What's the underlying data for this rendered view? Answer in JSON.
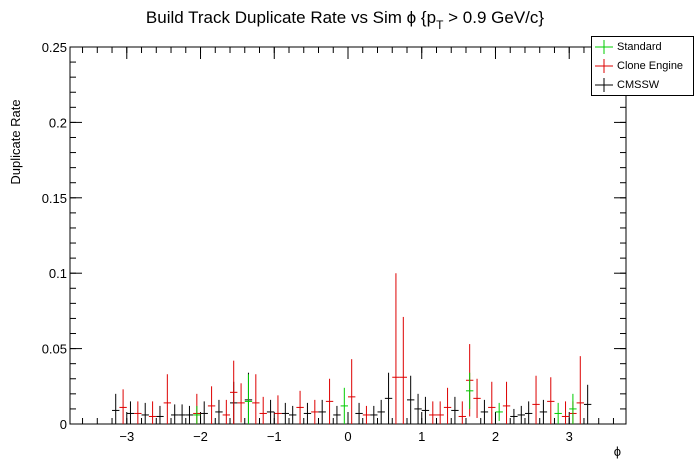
{
  "chart_data": {
    "type": "scatter",
    "title": "Build Track Duplicate Rate vs Sim ϕ {p",
    "title_sub": "T",
    "title_rest": " > 0.9 GeV/c}",
    "xlabel": "ϕ",
    "ylabel": "Duplicate Rate",
    "xlim": [
      -3.77,
      3.77
    ],
    "ylim": [
      0,
      0.25
    ],
    "x_ticks": [
      {
        "v": -3,
        "label": "−3"
      },
      {
        "v": -2,
        "label": "−2"
      },
      {
        "v": -1,
        "label": "−1"
      },
      {
        "v": 0,
        "label": "0"
      },
      {
        "v": 1,
        "label": "1"
      },
      {
        "v": 2,
        "label": "2"
      },
      {
        "v": 3,
        "label": "3"
      }
    ],
    "y_ticks": [
      {
        "v": 0,
        "label": "0"
      },
      {
        "v": 0.05,
        "label": "0.05"
      },
      {
        "v": 0.1,
        "label": "0.1"
      },
      {
        "v": 0.15,
        "label": "0.15"
      },
      {
        "v": 0.2,
        "label": "0.2"
      },
      {
        "v": 0.25,
        "label": "0.25"
      }
    ],
    "bin_width": 0.1,
    "series": [
      {
        "name": "Standard",
        "color": "#00cc00",
        "points": [
          {
            "x": -2.05,
            "y": 0.006,
            "e": 0.006
          },
          {
            "x": -1.35,
            "y": 0.015,
            "e": 0.018
          },
          {
            "x": -0.05,
            "y": 0.012,
            "e": 0.012
          },
          {
            "x": 1.65,
            "y": 0.022,
            "e": 0.012
          },
          {
            "x": 2.05,
            "y": 0.008,
            "e": 0.006
          },
          {
            "x": 2.85,
            "y": 0.007,
            "e": 0.007
          },
          {
            "x": 3.05,
            "y": 0.01,
            "e": 0.01
          }
        ]
      },
      {
        "name": "Clone Engine",
        "color": "#dd0000",
        "points": [
          {
            "x": -3.05,
            "y": 0.011,
            "e": 0.012
          },
          {
            "x": -2.85,
            "y": 0.007,
            "e": 0.008
          },
          {
            "x": -2.65,
            "y": 0.005,
            "e": 0.01
          },
          {
            "x": -2.45,
            "y": 0.014,
            "e": 0.019
          },
          {
            "x": -2.05,
            "y": 0.007,
            "e": 0.013
          },
          {
            "x": -1.85,
            "y": 0.012,
            "e": 0.013
          },
          {
            "x": -1.65,
            "y": 0.006,
            "e": 0.01
          },
          {
            "x": -1.55,
            "y": 0.021,
            "e": 0.021
          },
          {
            "x": -1.45,
            "y": 0.014,
            "e": 0.013
          },
          {
            "x": -1.25,
            "y": 0.014,
            "e": 0.019
          },
          {
            "x": -1.15,
            "y": 0.007,
            "e": 0.011
          },
          {
            "x": -0.95,
            "y": 0.007,
            "e": 0.012
          },
          {
            "x": -0.65,
            "y": 0.011,
            "e": 0.011
          },
          {
            "x": -0.45,
            "y": 0.008,
            "e": 0.008
          },
          {
            "x": -0.25,
            "y": 0.015,
            "e": 0.015
          },
          {
            "x": 0.05,
            "y": 0.018,
            "e": 0.025
          },
          {
            "x": 0.25,
            "y": 0.006,
            "e": 0.006
          },
          {
            "x": 0.65,
            "y": 0.031,
            "e": 0.069
          },
          {
            "x": 0.75,
            "y": 0.031,
            "e": 0.04
          },
          {
            "x": 1.15,
            "y": 0.006,
            "e": 0.009
          },
          {
            "x": 1.25,
            "y": 0.006,
            "e": 0.009
          },
          {
            "x": 1.35,
            "y": 0.011,
            "e": 0.013
          },
          {
            "x": 1.55,
            "y": 0.005,
            "e": 0.01
          },
          {
            "x": 1.65,
            "y": 0.029,
            "e": 0.024
          },
          {
            "x": 1.75,
            "y": 0.017,
            "e": 0.013
          },
          {
            "x": 1.95,
            "y": 0.011,
            "e": 0.017
          },
          {
            "x": 2.15,
            "y": 0.012,
            "e": 0.016
          },
          {
            "x": 2.55,
            "y": 0.013,
            "e": 0.019
          },
          {
            "x": 2.75,
            "y": 0.015,
            "e": 0.016
          },
          {
            "x": 2.95,
            "y": 0.005,
            "e": 0.01
          },
          {
            "x": 3.05,
            "y": 0.007,
            "e": 0.008
          },
          {
            "x": 3.15,
            "y": 0.014,
            "e": 0.031
          }
        ]
      },
      {
        "name": "CMSSW",
        "color": "#000000",
        "points": [
          {
            "x": -3.15,
            "y": 0.009,
            "e": 0.011
          },
          {
            "x": -2.95,
            "y": 0.007,
            "e": 0.008
          },
          {
            "x": -2.75,
            "y": 0.006,
            "e": 0.008
          },
          {
            "x": -2.55,
            "y": 0.005,
            "e": 0.007
          },
          {
            "x": -2.35,
            "y": 0.006,
            "e": 0.007
          },
          {
            "x": -2.25,
            "y": 0.006,
            "e": 0.007
          },
          {
            "x": -2.15,
            "y": 0.006,
            "e": 0.006
          },
          {
            "x": -1.95,
            "y": 0.007,
            "e": 0.008
          },
          {
            "x": -1.75,
            "y": 0.008,
            "e": 0.008
          },
          {
            "x": -1.55,
            "y": 0.014,
            "e": 0.014
          },
          {
            "x": -1.35,
            "y": 0.016,
            "e": 0.018
          },
          {
            "x": -1.05,
            "y": 0.008,
            "e": 0.008
          },
          {
            "x": -0.85,
            "y": 0.007,
            "e": 0.007
          },
          {
            "x": -0.75,
            "y": 0.006,
            "e": 0.006
          },
          {
            "x": -0.55,
            "y": 0.007,
            "e": 0.007
          },
          {
            "x": -0.35,
            "y": 0.008,
            "e": 0.008
          },
          {
            "x": -0.15,
            "y": 0.006,
            "e": 0.006
          },
          {
            "x": 0.15,
            "y": 0.007,
            "e": 0.007
          },
          {
            "x": 0.35,
            "y": 0.006,
            "e": 0.006
          },
          {
            "x": 0.45,
            "y": 0.008,
            "e": 0.008
          },
          {
            "x": 0.55,
            "y": 0.017,
            "e": 0.017
          },
          {
            "x": 0.85,
            "y": 0.016,
            "e": 0.016
          },
          {
            "x": 0.95,
            "y": 0.01,
            "e": 0.01
          },
          {
            "x": 1.05,
            "y": 0.009,
            "e": 0.009
          },
          {
            "x": 1.45,
            "y": 0.009,
            "e": 0.009
          },
          {
            "x": 1.85,
            "y": 0.008,
            "e": 0.008
          },
          {
            "x": 2.25,
            "y": 0.005,
            "e": 0.005
          },
          {
            "x": 2.35,
            "y": 0.006,
            "e": 0.006
          },
          {
            "x": 2.45,
            "y": 0.007,
            "e": 0.008
          },
          {
            "x": 2.65,
            "y": 0.008,
            "e": 0.008
          },
          {
            "x": 3.25,
            "y": 0.013,
            "e": 0.013
          }
        ]
      }
    ],
    "legend_position": "top-right",
    "grid": false
  }
}
